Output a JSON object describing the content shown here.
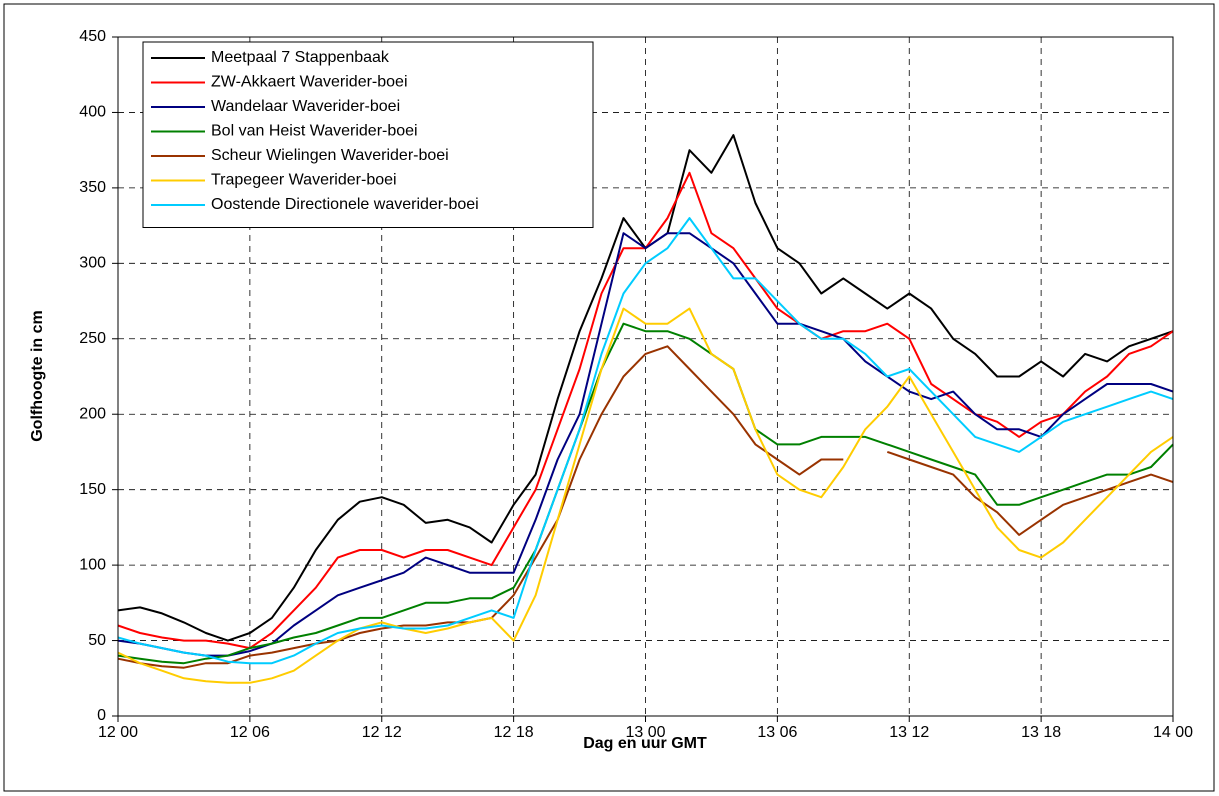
{
  "chart_data": {
    "type": "line",
    "xlabel": "Dag en uur GMT",
    "ylabel": "Golfhoogte in cm",
    "xlim": [
      0,
      48
    ],
    "ylim": [
      0,
      450
    ],
    "xticks": [
      {
        "value": 0,
        "label": "12 00"
      },
      {
        "value": 6,
        "label": "12 06"
      },
      {
        "value": 12,
        "label": "12 12"
      },
      {
        "value": 18,
        "label": "12 18"
      },
      {
        "value": 24,
        "label": "13 00"
      },
      {
        "value": 30,
        "label": "13 06"
      },
      {
        "value": 36,
        "label": "13 12"
      },
      {
        "value": 42,
        "label": "13 18"
      },
      {
        "value": 48,
        "label": "14 00"
      }
    ],
    "yticks": [
      0,
      50,
      100,
      150,
      200,
      250,
      300,
      350,
      400,
      450
    ],
    "grid": true,
    "legend": "upper left",
    "x": [
      0,
      1,
      2,
      3,
      4,
      5,
      6,
      7,
      8,
      9,
      10,
      11,
      12,
      13,
      14,
      15,
      16,
      17,
      18,
      19,
      20,
      21,
      22,
      23,
      24,
      25,
      26,
      27,
      28,
      29,
      30,
      31,
      32,
      33,
      34,
      35,
      36,
      37,
      38,
      39,
      40,
      41,
      42,
      43,
      44,
      45,
      46,
      47,
      48
    ],
    "series": [
      {
        "name": "Meetpaal 7 Stappenbaak",
        "color": "#000000",
        "values": [
          70,
          72,
          68,
          62,
          55,
          50,
          55,
          65,
          85,
          110,
          130,
          142,
          145,
          140,
          128,
          130,
          125,
          115,
          140,
          160,
          210,
          255,
          290,
          330,
          310,
          320,
          375,
          360,
          385,
          340,
          310,
          300,
          280,
          290,
          280,
          270,
          280,
          270,
          250,
          240,
          225,
          225,
          235,
          225,
          240,
          235,
          245,
          250,
          255
        ]
      },
      {
        "name": "ZW-Akkaert Waverider-boei",
        "color": "#ff0000",
        "values": [
          60,
          55,
          52,
          50,
          50,
          48,
          45,
          55,
          70,
          85,
          105,
          110,
          110,
          105,
          110,
          110,
          105,
          100,
          125,
          150,
          190,
          230,
          280,
          310,
          310,
          330,
          360,
          320,
          310,
          290,
          270,
          260,
          250,
          255,
          255,
          260,
          250,
          220,
          210,
          200,
          195,
          185,
          195,
          200,
          215,
          225,
          240,
          245,
          255
        ]
      },
      {
        "name": "Wandelaar Waverider-boei",
        "color": "#000080",
        "values": [
          50,
          48,
          45,
          42,
          40,
          40,
          43,
          48,
          60,
          70,
          80,
          85,
          90,
          95,
          105,
          100,
          95,
          95,
          95,
          130,
          170,
          200,
          260,
          320,
          310,
          320,
          320,
          310,
          300,
          280,
          260,
          260,
          255,
          250,
          235,
          225,
          215,
          210,
          215,
          200,
          190,
          190,
          185,
          200,
          210,
          220,
          220,
          220,
          215
        ]
      },
      {
        "name": "Bol van Heist Waverider-boei",
        "color": "#008000",
        "values": [
          40,
          38,
          36,
          35,
          38,
          40,
          45,
          48,
          52,
          55,
          60,
          65,
          65,
          70,
          75,
          75,
          78,
          78,
          85,
          110,
          150,
          190,
          230,
          260,
          255,
          255,
          250,
          240,
          230,
          190,
          180,
          180,
          185,
          185,
          185,
          180,
          175,
          170,
          165,
          160,
          140,
          140,
          145,
          150,
          155,
          160,
          160,
          165,
          180
        ]
      },
      {
        "name": "Scheur Wielingen Waverider-boei",
        "color": "#993300",
        "values": [
          38,
          35,
          33,
          32,
          35,
          35,
          40,
          42,
          45,
          48,
          50,
          55,
          58,
          60,
          60,
          62,
          62,
          65,
          80,
          105,
          130,
          170,
          200,
          225,
          240,
          245,
          230,
          215,
          200,
          180,
          170,
          160,
          170,
          170,
          null,
          175,
          170,
          165,
          160,
          145,
          135,
          120,
          130,
          140,
          145,
          150,
          155,
          160,
          155
        ]
      },
      {
        "name": "Trapegeer Waverider-boei",
        "color": "#ffcc00",
        "values": [
          42,
          35,
          30,
          25,
          23,
          22,
          22,
          25,
          30,
          40,
          50,
          58,
          62,
          58,
          55,
          58,
          62,
          65,
          50,
          80,
          130,
          180,
          230,
          270,
          260,
          260,
          270,
          240,
          230,
          190,
          160,
          150,
          145,
          165,
          190,
          205,
          225,
          200,
          175,
          150,
          125,
          110,
          105,
          115,
          130,
          145,
          160,
          175,
          185
        ]
      },
      {
        "name": "Oostende Directionele waverider-boei",
        "color": "#00ccff",
        "values": [
          52,
          48,
          45,
          42,
          40,
          36,
          35,
          35,
          40,
          48,
          55,
          58,
          60,
          58,
          58,
          60,
          65,
          70,
          65,
          110,
          150,
          190,
          240,
          280,
          300,
          310,
          330,
          310,
          290,
          290,
          275,
          260,
          250,
          250,
          240,
          225,
          230,
          215,
          200,
          185,
          180,
          175,
          185,
          195,
          200,
          205,
          210,
          215,
          210
        ]
      }
    ]
  }
}
